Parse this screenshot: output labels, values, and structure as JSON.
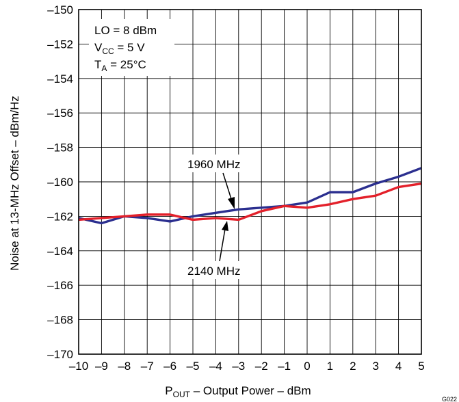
{
  "chart_data": {
    "type": "line",
    "title": "",
    "xlabel": {
      "main": "P",
      "sub": "OUT",
      "rest": " – Output Power – dBm"
    },
    "ylabel": "Noise at 13-MHz Offset – dBm/Hz",
    "xlim": [
      -10,
      5
    ],
    "ylim": [
      -170,
      -150
    ],
    "x_ticks": [
      -10,
      -9,
      -8,
      -7,
      -6,
      -5,
      -4,
      -3,
      -2,
      -1,
      0,
      1,
      2,
      3,
      4,
      5
    ],
    "x_tick_labels": [
      "–10",
      "–9",
      "–8",
      "–7",
      "–6",
      "–5",
      "–4",
      "–3",
      "–2",
      "–1",
      "0",
      "1",
      "2",
      "3",
      "4",
      "5"
    ],
    "y_ticks": [
      -150,
      -152,
      -154,
      -156,
      -158,
      -160,
      -162,
      -164,
      -166,
      -168,
      -170
    ],
    "y_tick_labels": [
      "–150",
      "–152",
      "–154",
      "–156",
      "–158",
      "–160",
      "–162",
      "–164",
      "–166",
      "–168",
      "–170"
    ],
    "grid": true,
    "x": [
      -10,
      -9,
      -8,
      -7,
      -6,
      -5,
      -4,
      -3,
      -2,
      -1,
      0,
      1,
      2,
      3,
      4,
      5
    ],
    "series": [
      {
        "name": "1960 MHz",
        "color": "#2b2f8f",
        "values": [
          -162.1,
          -162.4,
          -162.0,
          -162.1,
          -162.3,
          -162.0,
          -161.8,
          -161.6,
          -161.5,
          -161.4,
          -161.2,
          -160.6,
          -160.6,
          -160.1,
          -159.7,
          -159.2
        ]
      },
      {
        "name": "2140 MHz",
        "color": "#e3202a",
        "values": [
          -162.2,
          -162.1,
          -162.0,
          -161.9,
          -161.9,
          -162.2,
          -162.1,
          -162.2,
          -161.7,
          -161.4,
          -161.5,
          -161.3,
          -161.0,
          -160.8,
          -160.3,
          -160.1
        ]
      }
    ],
    "annotations": {
      "lo": "LO = 8 dBm",
      "vcc": {
        "main": "V",
        "sub": "CC",
        "rest": " =  5 V"
      },
      "ta": {
        "main": "T",
        "sub": "A",
        "rest": " = 25°C"
      }
    },
    "figure_id": "G022"
  }
}
